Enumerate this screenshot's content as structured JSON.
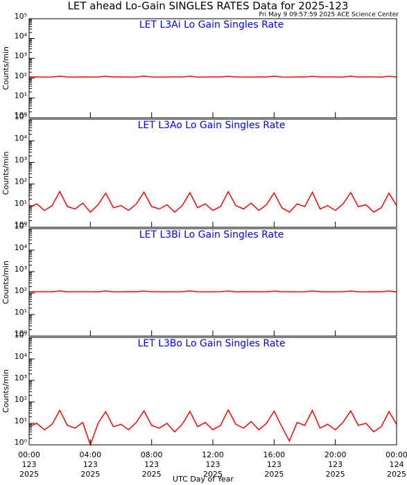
{
  "header": {
    "title": "LET ahead Lo-Gain SINGLES RATES Data for 2025-123",
    "timestamp": "Fri May  9 09:57:59 2025 ACE Science Center"
  },
  "time_axis": {
    "label": "UTC Day of Year",
    "xlim": [
      0,
      24
    ],
    "xticks": [
      {
        "value": 0,
        "label": "00:00",
        "day": "123",
        "year": "2025"
      },
      {
        "value": 4,
        "label": "04:00",
        "day": "123",
        "year": "2025"
      },
      {
        "value": 8,
        "label": "08:00",
        "day": "123",
        "year": "2025"
      },
      {
        "value": 12,
        "label": "12:00",
        "day": "123",
        "year": "2025"
      },
      {
        "value": 16,
        "label": "16:00",
        "day": "123",
        "year": "2025"
      },
      {
        "value": 20,
        "label": "20:00",
        "day": "123",
        "year": "2025"
      },
      {
        "value": 24,
        "label": "00:00",
        "day": "124",
        "year": "2025"
      }
    ],
    "x": [
      0,
      0.5,
      1,
      1.5,
      2,
      2.5,
      3,
      3.5,
      4,
      4.5,
      5,
      5.5,
      6,
      6.5,
      7,
      7.5,
      8,
      8.5,
      9,
      9.5,
      10,
      10.5,
      11,
      11.5,
      12,
      12.5,
      13,
      13.5,
      14,
      14.5,
      15,
      15.5,
      16,
      16.5,
      17,
      17.5,
      18,
      18.5,
      19,
      19.5,
      20,
      20.5,
      21,
      21.5,
      22,
      22.5,
      23,
      23.5,
      24
    ]
  },
  "chart_data": [
    {
      "type": "line",
      "title": "LET L3Ai Lo Gain Singles Rate",
      "ylabel": "Counts/min",
      "log_y": true,
      "ylim": [
        1,
        100000
      ],
      "yticks": [
        {
          "value": 1,
          "label": "10⁰"
        },
        {
          "value": 10,
          "label": "10¹"
        },
        {
          "value": 100,
          "label": "10²"
        },
        {
          "value": 1000,
          "label": "10³"
        },
        {
          "value": 10000,
          "label": "10⁴"
        },
        {
          "value": 100000,
          "label": "10⁵"
        }
      ],
      "series": [
        {
          "color": "#ff0000",
          "values": [
            115,
            116,
            114,
            115,
            125,
            115,
            114,
            116,
            115,
            115,
            124,
            115,
            116,
            114,
            115,
            126,
            115,
            114,
            115,
            116,
            115,
            125,
            114,
            115,
            116,
            115,
            124,
            115,
            115,
            114,
            116,
            115,
            125,
            115,
            114,
            116,
            115,
            124,
            115,
            116,
            115,
            114,
            125,
            115,
            116,
            115,
            114,
            124,
            115
          ]
        }
      ]
    },
    {
      "type": "line",
      "title": "LET L3Ao Lo Gain Singles Rate",
      "ylabel": "Counts/min",
      "log_y": true,
      "ylim": [
        1,
        100000
      ],
      "yticks": [
        {
          "value": 1,
          "label": "10⁰"
        },
        {
          "value": 10,
          "label": "10¹"
        },
        {
          "value": 100,
          "label": "10²"
        },
        {
          "value": 1000,
          "label": "10³"
        },
        {
          "value": 10000,
          "label": "10⁴"
        },
        {
          "value": 100000,
          "label": "10⁵"
        }
      ],
      "series": [
        {
          "color": "#ff0000",
          "values": [
            8,
            12,
            6,
            10,
            45,
            9,
            7,
            13,
            5,
            11,
            38,
            8,
            10,
            6,
            12,
            42,
            9,
            7,
            11,
            5,
            10,
            40,
            8,
            12,
            6,
            9,
            44,
            10,
            7,
            13,
            6,
            11,
            39,
            8,
            5,
            12,
            9,
            42,
            7,
            10,
            6,
            12,
            40,
            9,
            11,
            5,
            8,
            38,
            10
          ]
        }
      ]
    },
    {
      "type": "line",
      "title": "LET L3Bi Lo Gain Singles Rate",
      "ylabel": "Counts/min",
      "log_y": true,
      "ylim": [
        1,
        100000
      ],
      "yticks": [
        {
          "value": 1,
          "label": "10⁰"
        },
        {
          "value": 10,
          "label": "10¹"
        },
        {
          "value": 100,
          "label": "10²"
        },
        {
          "value": 1000,
          "label": "10³"
        },
        {
          "value": 10000,
          "label": "10⁴"
        },
        {
          "value": 100000,
          "label": "10⁵"
        }
      ],
      "series": [
        {
          "color": "#ff0000",
          "values": [
            114,
            115,
            116,
            115,
            126,
            114,
            115,
            115,
            116,
            114,
            125,
            115,
            114,
            116,
            115,
            124,
            116,
            115,
            114,
            115,
            116,
            126,
            115,
            114,
            115,
            116,
            125,
            114,
            116,
            115,
            115,
            114,
            124,
            116,
            115,
            114,
            115,
            125,
            116,
            114,
            115,
            116,
            124,
            115,
            114,
            116,
            115,
            125,
            114
          ]
        }
      ]
    },
    {
      "type": "line",
      "title": "LET L3Bo Lo Gain Singles Rate",
      "ylabel": "Counts/min",
      "log_y": true,
      "ylim": [
        1,
        100000
      ],
      "yticks": [
        {
          "value": 1,
          "label": "10⁰"
        },
        {
          "value": 10,
          "label": "10¹"
        },
        {
          "value": 100,
          "label": "10²"
        },
        {
          "value": 1000,
          "label": "10³"
        },
        {
          "value": 10000,
          "label": "10⁴"
        },
        {
          "value": 100000,
          "label": "10⁵"
        }
      ],
      "series": [
        {
          "color": "#ff0000",
          "values": [
            7,
            10,
            5,
            9,
            40,
            8,
            6,
            11,
            1,
            10,
            35,
            7,
            9,
            5,
            11,
            38,
            8,
            6,
            10,
            4,
            9,
            36,
            7,
            11,
            5,
            8,
            42,
            9,
            6,
            12,
            5,
            10,
            37,
            7,
            1.5,
            11,
            8,
            40,
            6,
            9,
            5,
            11,
            38,
            8,
            10,
            4,
            7,
            35,
            9
          ]
        }
      ]
    }
  ]
}
